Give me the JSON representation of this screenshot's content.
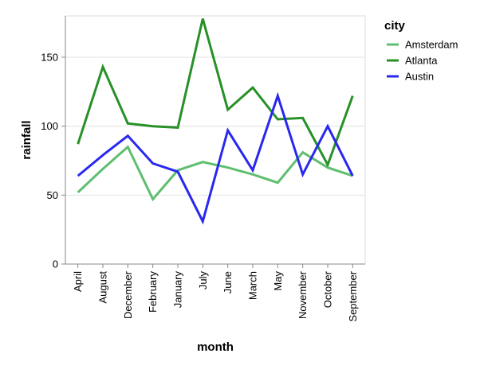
{
  "chart_data": {
    "type": "line",
    "xlabel": "month",
    "ylabel": "rainfall",
    "categories": [
      "April",
      "August",
      "December",
      "February",
      "January",
      "July",
      "June",
      "March",
      "May",
      "November",
      "October",
      "September"
    ],
    "ylim": [
      0,
      180
    ],
    "yticks": [
      0,
      50,
      100,
      150
    ],
    "grid": true,
    "legend": {
      "title": "city",
      "position": "right"
    },
    "series": [
      {
        "name": "Amsterdam",
        "color": "#5fbe6f",
        "values": [
          52,
          69,
          85,
          47,
          68,
          74,
          70,
          65,
          59,
          81,
          70,
          64
        ]
      },
      {
        "name": "Atlanta",
        "color": "#279127",
        "values": [
          87,
          143,
          102,
          100,
          99,
          178,
          112,
          128,
          105,
          106,
          72,
          122
        ]
      },
      {
        "name": "Austin",
        "color": "#2828f0",
        "values": [
          64,
          79,
          93,
          73,
          67,
          31,
          97,
          68,
          122,
          65,
          100,
          64
        ]
      }
    ]
  }
}
